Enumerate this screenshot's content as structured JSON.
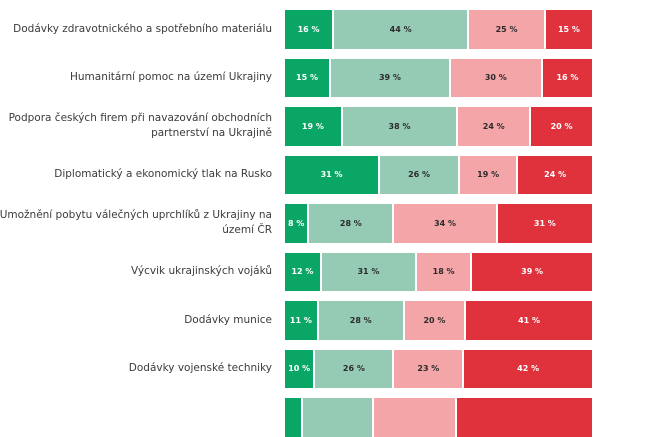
{
  "chart_data": {
    "type": "bar",
    "orientation": "horizontal",
    "stacked": true,
    "title": "",
    "xlabel": "",
    "ylabel": "",
    "xlim": [
      0,
      100
    ],
    "unit": "%",
    "grid": false,
    "legend": "none visible",
    "categories": [
      "Dodávky zdravotnického a spotřebního materiálu",
      "Humanitární pomoc na území Ukrajiny",
      "Podpora českých firem při navazování obchodních partnerství na Ukrajině",
      "Diplomatický a ekonomický tlak na Rusko",
      "Umožnění pobytu válečných uprchlíků z Ukrajiny na území ČR",
      "Výcvik ukrajinských vojáků",
      "Dodávky munice",
      "Dodávky vojenské techniky",
      ""
    ],
    "series": [
      {
        "name": "segment-1",
        "color": "#0aa665",
        "text_color": "#ffffff",
        "values": [
          16,
          15,
          19,
          31,
          8,
          12,
          11,
          10,
          6
        ]
      },
      {
        "name": "segment-2",
        "color": "#95cbb4",
        "text_color": "#2b2b2b",
        "values": [
          44,
          39,
          38,
          26,
          28,
          31,
          28,
          26,
          23
        ]
      },
      {
        "name": "segment-3",
        "color": "#f4a5a8",
        "text_color": "#2b2b2b",
        "values": [
          25,
          30,
          24,
          19,
          34,
          18,
          20,
          23,
          27
        ]
      },
      {
        "name": "segment-4",
        "color": "#e0323c",
        "text_color": "#ffffff",
        "values": [
          15,
          16,
          20,
          24,
          31,
          39,
          41,
          42,
          44
        ]
      }
    ],
    "value_labels_visible": [
      true,
      true,
      true,
      true,
      true,
      true,
      true,
      true,
      false
    ]
  }
}
